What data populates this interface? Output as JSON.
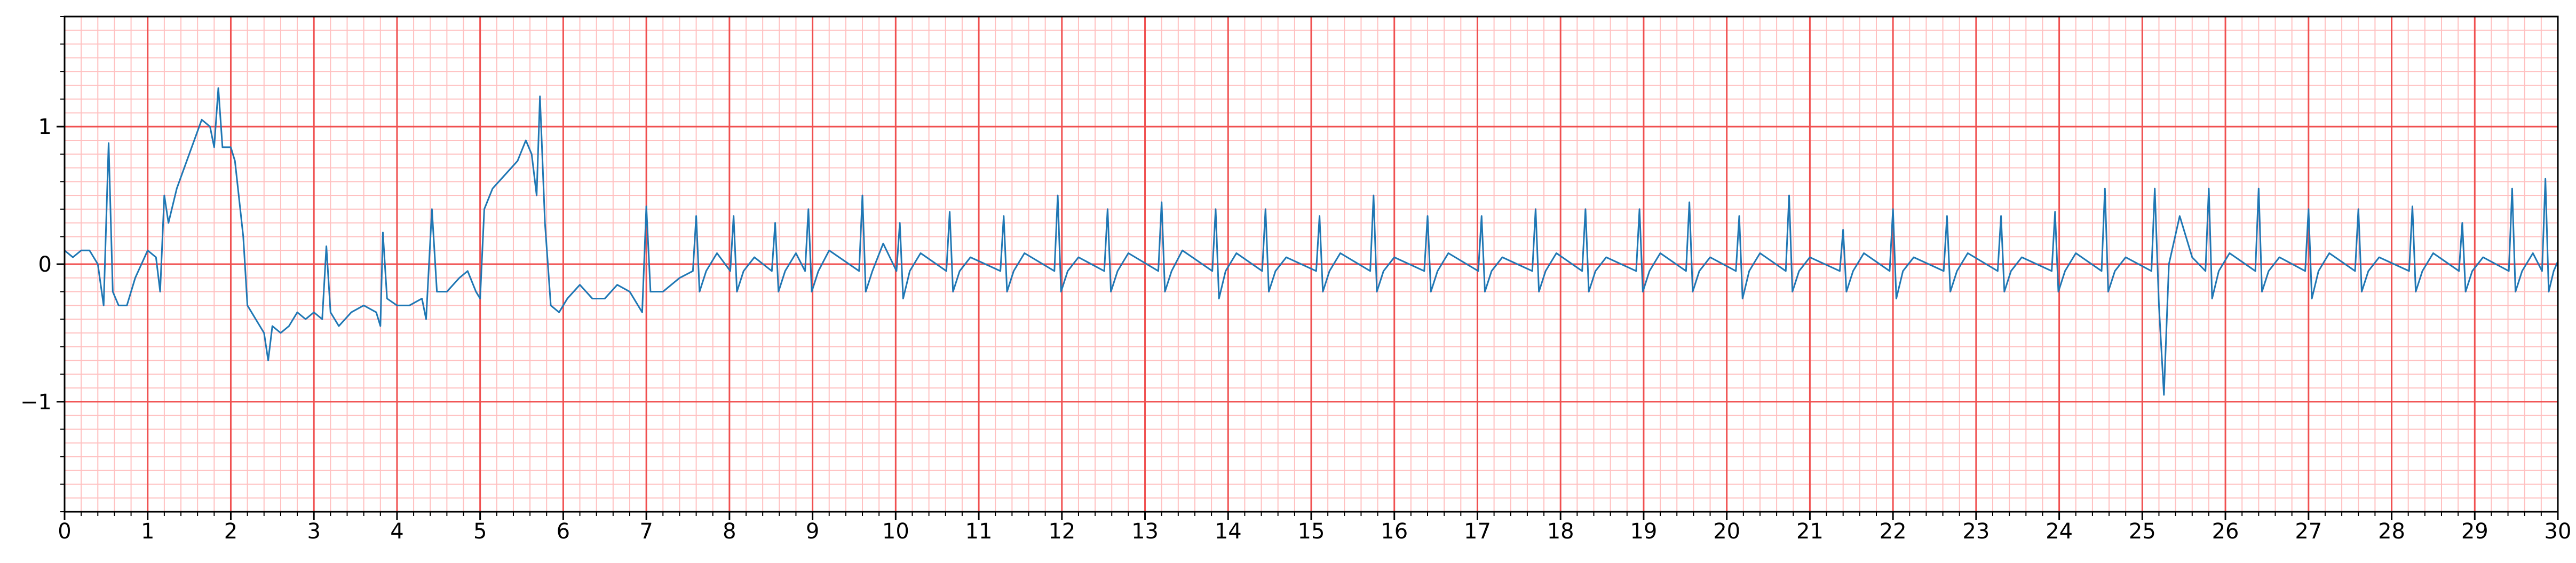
{
  "chart_data": {
    "type": "line",
    "x": [
      0,
      0.1,
      0.2,
      0.3,
      0.4,
      0.47,
      0.53,
      0.58,
      0.65,
      0.75,
      0.85,
      1.0,
      1.1,
      1.15,
      1.2,
      1.25,
      1.35,
      1.5,
      1.65,
      1.75,
      1.8,
      1.85,
      1.9,
      2.0,
      2.05,
      2.15,
      2.2,
      2.3,
      2.4,
      2.45,
      2.5,
      2.6,
      2.7,
      2.8,
      2.9,
      3.0,
      3.1,
      3.15,
      3.2,
      3.3,
      3.45,
      3.6,
      3.75,
      3.8,
      3.83,
      3.88,
      4.0,
      4.15,
      4.3,
      4.35,
      4.42,
      4.48,
      4.6,
      4.75,
      4.85,
      4.95,
      5.0,
      5.05,
      5.15,
      5.3,
      5.45,
      5.55,
      5.62,
      5.68,
      5.72,
      5.78,
      5.85,
      5.95,
      6.05,
      6.2,
      6.35,
      6.5,
      6.65,
      6.8,
      6.95,
      7.0,
      7.05,
      7.2,
      7.4,
      7.56,
      7.6,
      7.64,
      7.72,
      7.85,
      8.01,
      8.05,
      8.09,
      8.17,
      8.3,
      8.51,
      8.55,
      8.59,
      8.67,
      8.8,
      8.91,
      8.95,
      8.99,
      9.07,
      9.2,
      9.56,
      9.6,
      9.64,
      9.72,
      9.85,
      10.01,
      10.05,
      10.09,
      10.17,
      10.3,
      10.61,
      10.65,
      10.69,
      10.77,
      10.9,
      11.26,
      11.3,
      11.34,
      11.42,
      11.55,
      11.91,
      11.95,
      11.99,
      12.07,
      12.2,
      12.51,
      12.55,
      12.59,
      12.67,
      12.8,
      13.16,
      13.2,
      13.24,
      13.32,
      13.45,
      13.81,
      13.85,
      13.89,
      13.97,
      14.1,
      14.41,
      14.45,
      14.49,
      14.57,
      14.7,
      15.06,
      15.1,
      15.14,
      15.22,
      15.35,
      15.71,
      15.75,
      15.79,
      15.87,
      16.0,
      16.36,
      16.4,
      16.44,
      16.52,
      16.65,
      17.01,
      17.05,
      17.09,
      17.17,
      17.3,
      17.66,
      17.7,
      17.74,
      17.82,
      17.95,
      18.26,
      18.3,
      18.34,
      18.42,
      18.55,
      18.91,
      18.95,
      18.99,
      19.07,
      19.2,
      19.51,
      19.55,
      19.59,
      19.67,
      19.8,
      20.11,
      20.15,
      20.19,
      20.27,
      20.4,
      20.71,
      20.75,
      20.79,
      20.87,
      21.0,
      21.36,
      21.4,
      21.44,
      21.52,
      21.65,
      21.96,
      22.0,
      22.04,
      22.12,
      22.25,
      22.61,
      22.65,
      22.69,
      22.77,
      22.9,
      23.26,
      23.3,
      23.34,
      23.42,
      23.55,
      23.91,
      23.95,
      23.99,
      24.07,
      24.2,
      24.51,
      24.55,
      24.59,
      24.67,
      24.8,
      25.11,
      25.15,
      25.2,
      25.26,
      25.32,
      25.45,
      25.6,
      25.76,
      25.8,
      25.84,
      25.92,
      26.05,
      26.36,
      26.4,
      26.44,
      26.52,
      26.65,
      26.96,
      27.0,
      27.04,
      27.12,
      27.25,
      27.56,
      27.6,
      27.64,
      27.72,
      27.85,
      28.21,
      28.25,
      28.29,
      28.37,
      28.5,
      28.81,
      28.85,
      28.89,
      28.97,
      29.1,
      29.41,
      29.45,
      29.49,
      29.57,
      29.7,
      29.81,
      29.85,
      29.89,
      29.95,
      30.0
    ],
    "values": [
      0.1,
      0.05,
      0.1,
      0.1,
      0.0,
      -0.3,
      0.88,
      -0.2,
      -0.3,
      -0.3,
      -0.1,
      0.1,
      0.05,
      -0.2,
      0.5,
      0.3,
      0.55,
      0.8,
      1.05,
      1.0,
      0.85,
      1.28,
      0.85,
      0.85,
      0.75,
      0.2,
      -0.3,
      -0.4,
      -0.5,
      -0.7,
      -0.45,
      -0.5,
      -0.45,
      -0.35,
      -0.4,
      -0.35,
      -0.4,
      0.13,
      -0.35,
      -0.45,
      -0.35,
      -0.3,
      -0.35,
      -0.45,
      0.23,
      -0.25,
      -0.3,
      -0.3,
      -0.25,
      -0.4,
      0.4,
      -0.2,
      -0.2,
      -0.1,
      -0.05,
      -0.2,
      -0.25,
      0.4,
      0.55,
      0.65,
      0.75,
      0.9,
      0.8,
      0.5,
      1.22,
      0.3,
      -0.3,
      -0.35,
      -0.25,
      -0.15,
      -0.25,
      -0.25,
      -0.15,
      -0.2,
      -0.35,
      0.42,
      -0.2,
      -0.2,
      -0.1,
      -0.05,
      0.35,
      -0.2,
      -0.05,
      0.08,
      -0.05,
      0.35,
      -0.2,
      -0.05,
      0.05,
      -0.05,
      0.3,
      -0.2,
      -0.05,
      0.08,
      -0.05,
      0.4,
      -0.2,
      -0.05,
      0.1,
      -0.05,
      0.5,
      -0.2,
      -0.05,
      0.15,
      -0.05,
      0.3,
      -0.25,
      -0.05,
      0.08,
      -0.05,
      0.38,
      -0.2,
      -0.05,
      0.05,
      -0.05,
      0.35,
      -0.2,
      -0.05,
      0.08,
      -0.05,
      0.5,
      -0.2,
      -0.05,
      0.05,
      -0.05,
      0.4,
      -0.2,
      -0.05,
      0.08,
      -0.05,
      0.45,
      -0.2,
      -0.05,
      0.1,
      -0.05,
      0.4,
      -0.25,
      -0.05,
      0.08,
      -0.05,
      0.4,
      -0.2,
      -0.05,
      0.05,
      -0.05,
      0.35,
      -0.2,
      -0.05,
      0.08,
      -0.05,
      0.5,
      -0.2,
      -0.05,
      0.05,
      -0.05,
      0.35,
      -0.2,
      -0.05,
      0.08,
      -0.05,
      0.35,
      -0.2,
      -0.05,
      0.05,
      -0.05,
      0.4,
      -0.2,
      -0.05,
      0.08,
      -0.05,
      0.4,
      -0.2,
      -0.05,
      0.05,
      -0.05,
      0.4,
      -0.2,
      -0.05,
      0.08,
      -0.05,
      0.45,
      -0.2,
      -0.05,
      0.05,
      -0.05,
      0.35,
      -0.25,
      -0.05,
      0.08,
      -0.05,
      0.5,
      -0.2,
      -0.05,
      0.05,
      -0.05,
      0.25,
      -0.2,
      -0.05,
      0.08,
      -0.05,
      0.4,
      -0.25,
      -0.05,
      0.05,
      -0.05,
      0.35,
      -0.2,
      -0.05,
      0.08,
      -0.05,
      0.35,
      -0.2,
      -0.05,
      0.05,
      -0.05,
      0.38,
      -0.2,
      -0.05,
      0.08,
      -0.05,
      0.55,
      -0.2,
      -0.05,
      0.05,
      -0.05,
      0.55,
      -0.3,
      -0.95,
      0.0,
      0.35,
      0.05,
      -0.05,
      0.55,
      -0.25,
      -0.05,
      0.08,
      -0.05,
      0.55,
      -0.2,
      -0.05,
      0.05,
      -0.05,
      0.4,
      -0.25,
      -0.05,
      0.08,
      -0.05,
      0.4,
      -0.2,
      -0.05,
      0.05,
      -0.05,
      0.42,
      -0.2,
      -0.05,
      0.08,
      -0.05,
      0.3,
      -0.2,
      -0.05,
      0.05,
      -0.05,
      0.55,
      -0.2,
      -0.05,
      0.08,
      -0.05,
      0.62,
      -0.2,
      -0.05,
      0.02
    ],
    "color": "#1f77b4",
    "xlim": [
      0,
      30
    ],
    "ylim": [
      -1.8,
      1.8
    ],
    "xticks": [
      0,
      1,
      2,
      3,
      4,
      5,
      6,
      7,
      8,
      9,
      10,
      11,
      12,
      13,
      14,
      15,
      16,
      17,
      18,
      19,
      20,
      21,
      22,
      23,
      24,
      25,
      26,
      27,
      28,
      29,
      30
    ],
    "yticks": [
      {
        "value": -1,
        "label": "−1"
      },
      0,
      1
    ],
    "grid": true,
    "major_grid_color": "#f05050",
    "minor_grid_color": "#ffc0c0",
    "minor_step_x": 0.2,
    "minor_step_y": 0.1
  }
}
